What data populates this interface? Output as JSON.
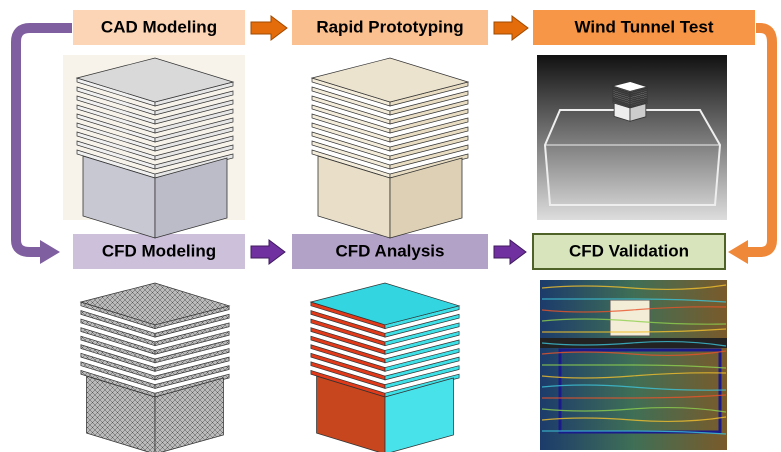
{
  "nodes": [
    {
      "label": "CAD Modeling"
    },
    {
      "label": "Rapid Prototyping"
    },
    {
      "label": "Wind Tunnel Test"
    },
    {
      "label": "CFD Modeling"
    },
    {
      "label": "CFD Analysis"
    },
    {
      "label": "CFD Validation"
    }
  ]
}
